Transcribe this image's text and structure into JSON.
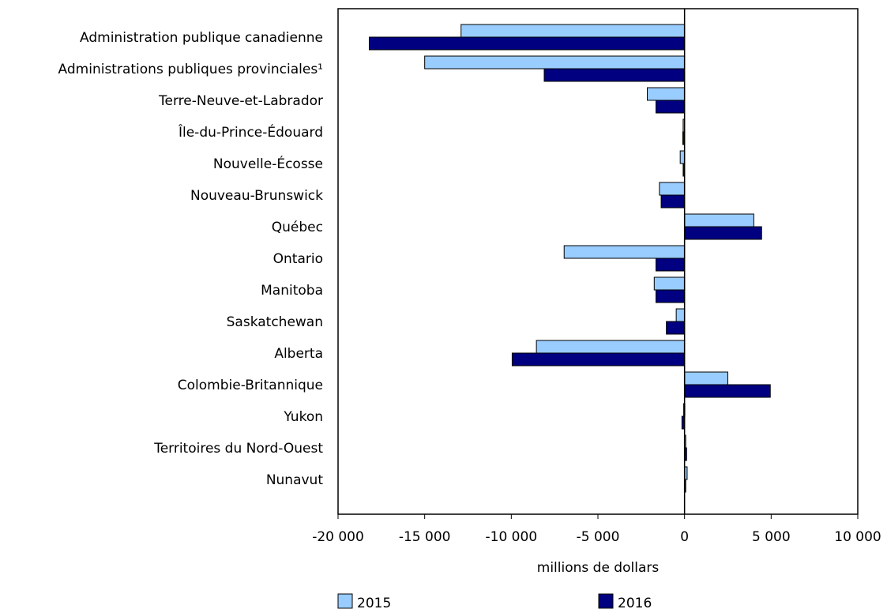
{
  "chart_data": {
    "type": "bar",
    "orientation": "horizontal",
    "title": "",
    "xlabel": "millions de dollars",
    "ylabel": "",
    "xlim": [
      -20000,
      10000
    ],
    "xticks": [
      -20000,
      -15000,
      -10000,
      -5000,
      0,
      5000,
      10000
    ],
    "xtick_labels": [
      "-20 000",
      "-15 000",
      "-10 000",
      "-5 000",
      "0",
      "5 000",
      "10 000"
    ],
    "grid": false,
    "legend_position": "bottom",
    "categories": [
      "Administration publique canadienne",
      "Administrations publiques provinciales¹",
      "Terre-Neuve-et-Labrador",
      "Île-du-Prince-Édouard",
      "Nouvelle-Écosse",
      "Nouveau-Brunswick",
      "Québec",
      "Ontario",
      "Manitoba",
      "Saskatchewan",
      "Alberta",
      "Colombie-Britannique",
      "Yukon",
      "Territoires du Nord-Ouest",
      "Nunavut"
    ],
    "series": [
      {
        "name": "2015",
        "color": "#99ccff",
        "values": [
          -12900,
          -15000,
          -2150,
          -80,
          -250,
          -1450,
          4000,
          -6950,
          -1750,
          -480,
          -8550,
          2500,
          -50,
          50,
          150
        ]
      },
      {
        "name": "2016",
        "color": "#000080",
        "values": [
          -18200,
          -8100,
          -1650,
          -100,
          -80,
          -1350,
          4450,
          -1650,
          -1650,
          -1050,
          -9950,
          4950,
          -150,
          120,
          60
        ]
      }
    ]
  }
}
